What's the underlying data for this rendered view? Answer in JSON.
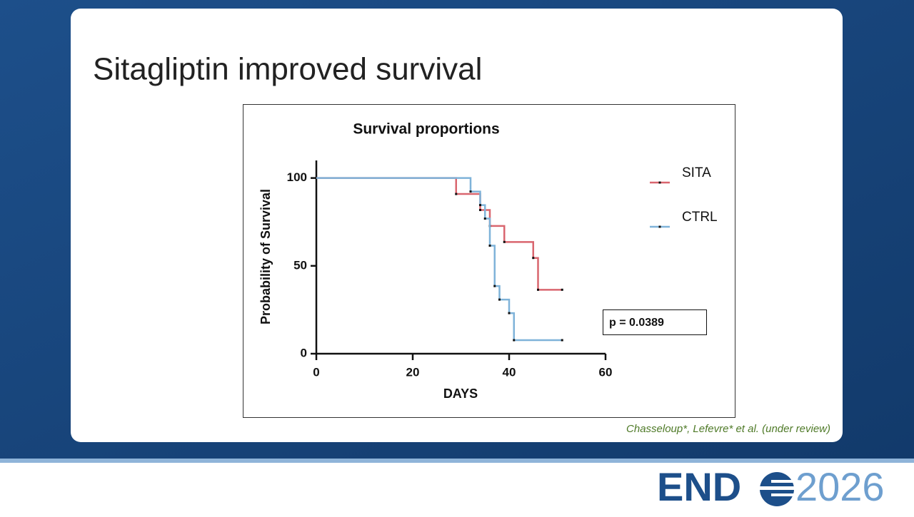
{
  "slide": {
    "title": "Sitagliptin improved survival",
    "citation": "Chasseloup*, Lefevre* et al. (under review)",
    "logo_left": "END",
    "logo_right": "2026"
  },
  "chart_data": {
    "type": "line",
    "step": "post",
    "title": "Survival proportions",
    "x_label": "DAYS",
    "y_label": "Probability of Survival",
    "series": [
      {
        "name": "SITA",
        "color": "#d9666f",
        "x": [
          0,
          29,
          34,
          36,
          39,
          45,
          46,
          51
        ],
        "values": [
          100,
          90.9,
          81.8,
          72.7,
          63.6,
          54.5,
          36.4,
          36.4
        ]
      },
      {
        "name": "CTRL",
        "color": "#7fb3d9",
        "x": [
          0,
          32,
          34,
          35,
          36,
          37,
          38,
          40,
          41,
          51
        ],
        "values": [
          100,
          92.3,
          84.6,
          76.9,
          61.5,
          38.5,
          30.8,
          23.1,
          7.7,
          7.7
        ]
      }
    ],
    "xlim": [
      0,
      60
    ],
    "xticks": [
      0,
      20,
      40,
      60
    ],
    "ylim": [
      0,
      110
    ],
    "yticks": [
      0,
      50,
      100
    ],
    "legend": "top-right",
    "annotation": "p = 0.0389"
  }
}
